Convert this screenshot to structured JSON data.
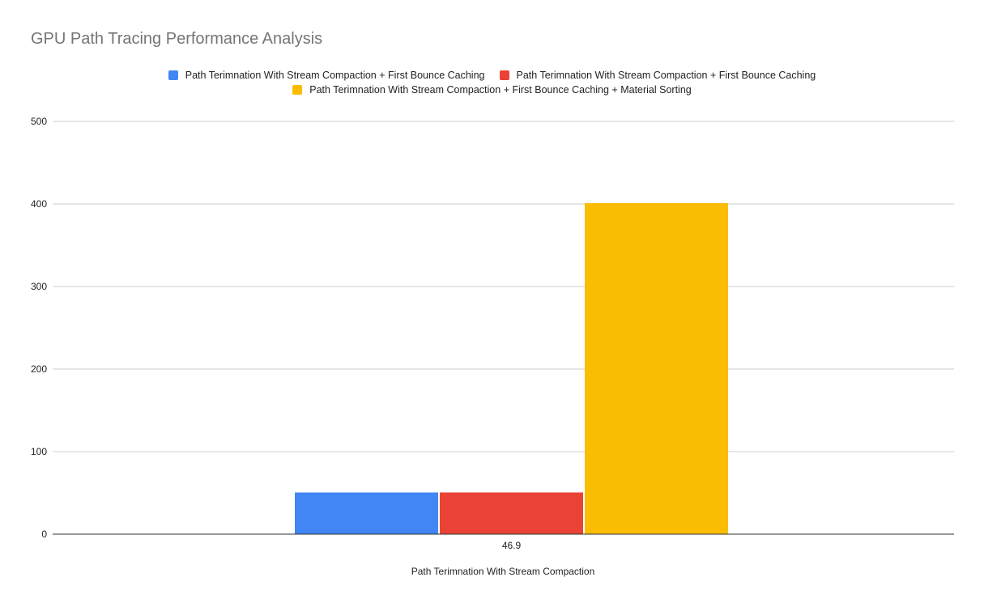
{
  "chart_data": {
    "type": "bar",
    "title": "GPU Path Tracing Performance Analysis",
    "xlabel": "Path Terimnation With Stream Compaction",
    "ylabel": "",
    "categories": [
      "46.9"
    ],
    "series": [
      {
        "name": "Path Terimnation With Stream Compaction + First Bounce Caching",
        "values": [
          50.5
        ],
        "color": "#4285f4"
      },
      {
        "name": "Path Terimnation With Stream Compaction + First Bounce Caching",
        "values": [
          50.5
        ],
        "color": "#ea4335"
      },
      {
        "name": "Path Terimnation With Stream Compaction + First Bounce Caching + Material Sorting",
        "values": [
          401
        ],
        "color": "#fbbc04"
      }
    ],
    "ylim": [
      0,
      500
    ],
    "yticks": [
      "0",
      "100",
      "200",
      "300",
      "400",
      "500"
    ],
    "grid": true,
    "legend": "top"
  }
}
